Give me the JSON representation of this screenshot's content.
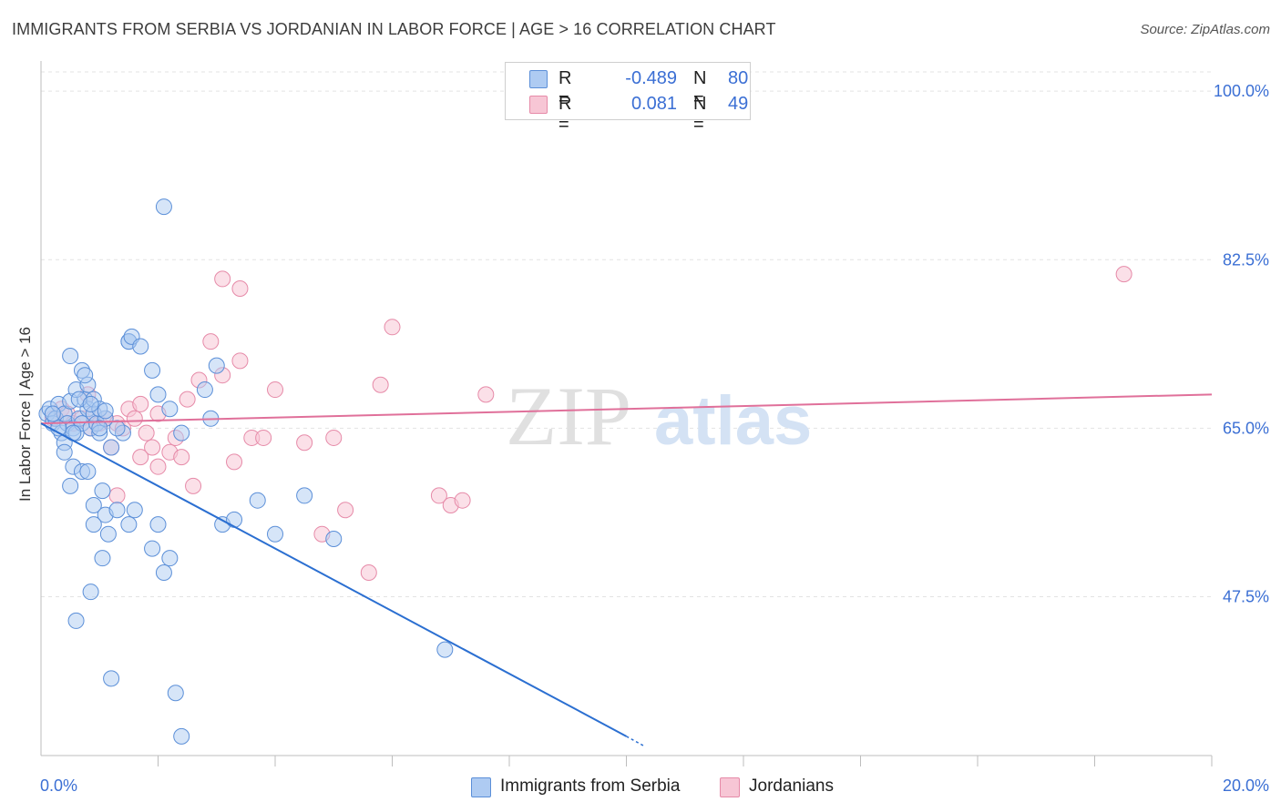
{
  "title": "IMMIGRANTS FROM SERBIA VS JORDANIAN IN LABOR FORCE | AGE > 16 CORRELATION CHART",
  "source": "Source: ZipAtlas.com",
  "watermark": {
    "zip": "ZIP",
    "atlas": "atlas"
  },
  "legend": {
    "series1": {
      "r_label": "R =",
      "r_value": "-0.489",
      "n_label": "N =",
      "n_value": "80"
    },
    "series2": {
      "r_label": "R =",
      "r_value": "0.081",
      "n_label": "N =",
      "n_value": "49"
    }
  },
  "colors": {
    "serbia_fill": "#aecbf2",
    "serbia_stroke": "#5b8fd8",
    "serbia_line": "#2b6fd1",
    "jordan_fill": "#f7c6d5",
    "jordan_stroke": "#e68aa8",
    "jordan_line": "#e0709a",
    "tick_label": "#3b6fd4",
    "grid": "#e3e3e3"
  },
  "chart_data": {
    "type": "scatter",
    "title": "IMMIGRANTS FROM SERBIA VS JORDANIAN IN LABOR FORCE | AGE > 16 CORRELATION CHART",
    "xlabel": "",
    "ylabel": "In Labor Force | Age > 16",
    "xlim": [
      0,
      20
    ],
    "ylim": [
      31,
      102
    ],
    "x_tick_labels": [
      "0.0%",
      "20.0%"
    ],
    "y_ticks": [
      47.5,
      65.0,
      82.5,
      100.0
    ],
    "y_tick_labels": [
      "47.5%",
      "65.0%",
      "82.5%",
      "100.0%"
    ],
    "grid": true,
    "legend_position": "top-center",
    "series": [
      {
        "name": "Immigrants from Serbia",
        "trend": {
          "x": [
            0.0,
            10.0
          ],
          "y": [
            65.5,
            33.0
          ]
        },
        "trend_dashed": {
          "x": [
            10.0,
            10.3
          ],
          "y": [
            33.0,
            32.0
          ]
        },
        "points": [
          [
            0.1,
            66.5
          ],
          [
            0.15,
            67.0
          ],
          [
            0.2,
            65.5
          ],
          [
            0.25,
            66.0
          ],
          [
            0.3,
            67.5
          ],
          [
            0.35,
            64.5
          ],
          [
            0.4,
            66.5
          ],
          [
            0.45,
            65.5
          ],
          [
            0.5,
            67.8
          ],
          [
            0.55,
            65.0
          ],
          [
            0.6,
            64.5
          ],
          [
            0.65,
            66.0
          ],
          [
            0.7,
            65.5
          ],
          [
            0.75,
            68.0
          ],
          [
            0.8,
            67.0
          ],
          [
            0.85,
            65.0
          ],
          [
            0.9,
            66.5
          ],
          [
            0.95,
            65.5
          ],
          [
            1.0,
            64.5
          ],
          [
            1.1,
            66.0
          ],
          [
            0.2,
            66.5
          ],
          [
            0.3,
            65.0
          ],
          [
            0.4,
            63.5
          ],
          [
            0.55,
            64.5
          ],
          [
            0.6,
            69.0
          ],
          [
            0.7,
            71.0
          ],
          [
            0.8,
            69.5
          ],
          [
            0.9,
            68.0
          ],
          [
            1.0,
            67.0
          ],
          [
            0.5,
            72.5
          ],
          [
            0.65,
            68.0
          ],
          [
            0.75,
            70.5
          ],
          [
            0.85,
            67.5
          ],
          [
            1.0,
            65.0
          ],
          [
            1.1,
            66.8
          ],
          [
            1.2,
            63.0
          ],
          [
            1.4,
            64.5
          ],
          [
            1.3,
            65.0
          ],
          [
            0.4,
            62.5
          ],
          [
            0.55,
            61.0
          ],
          [
            0.7,
            60.5
          ],
          [
            0.8,
            60.5
          ],
          [
            0.9,
            57.0
          ],
          [
            1.05,
            58.5
          ],
          [
            1.1,
            56.0
          ],
          [
            1.3,
            56.5
          ],
          [
            1.5,
            55.0
          ],
          [
            1.6,
            56.5
          ],
          [
            0.5,
            59.0
          ],
          [
            0.9,
            55.0
          ],
          [
            1.15,
            54.0
          ],
          [
            1.05,
            51.5
          ],
          [
            0.85,
            48.0
          ],
          [
            0.6,
            45.0
          ],
          [
            1.2,
            39.0
          ],
          [
            2.0,
            55.0
          ],
          [
            1.9,
            52.5
          ],
          [
            2.2,
            51.5
          ],
          [
            2.1,
            50.0
          ],
          [
            1.5,
            74.0
          ],
          [
            1.5,
            74.0
          ],
          [
            1.55,
            74.5
          ],
          [
            1.9,
            71.0
          ],
          [
            2.0,
            68.5
          ],
          [
            2.2,
            67.0
          ],
          [
            2.4,
            64.5
          ],
          [
            2.8,
            69.0
          ],
          [
            3.0,
            71.5
          ],
          [
            3.1,
            55.0
          ],
          [
            3.3,
            55.5
          ],
          [
            3.7,
            57.5
          ],
          [
            4.0,
            54.0
          ],
          [
            4.5,
            58.0
          ],
          [
            2.1,
            88.0
          ],
          [
            2.3,
            37.5
          ],
          [
            2.4,
            33.0
          ],
          [
            6.9,
            42.0
          ],
          [
            1.7,
            73.5
          ],
          [
            5.0,
            53.5
          ],
          [
            2.9,
            66.0
          ]
        ]
      },
      {
        "name": "Jordanians",
        "trend": {
          "x": [
            0.0,
            20.0
          ],
          "y": [
            65.5,
            68.5
          ]
        },
        "points": [
          [
            0.2,
            66.0
          ],
          [
            0.35,
            67.0
          ],
          [
            0.45,
            66.5
          ],
          [
            0.55,
            65.5
          ],
          [
            0.7,
            66.0
          ],
          [
            0.85,
            65.0
          ],
          [
            0.9,
            66.5
          ],
          [
            1.0,
            65.5
          ],
          [
            1.1,
            66.0
          ],
          [
            1.2,
            63.0
          ],
          [
            1.3,
            65.5
          ],
          [
            1.4,
            65.0
          ],
          [
            1.5,
            67.0
          ],
          [
            1.6,
            66.0
          ],
          [
            1.7,
            67.5
          ],
          [
            1.8,
            64.5
          ],
          [
            1.9,
            63.0
          ],
          [
            2.0,
            66.5
          ],
          [
            2.2,
            62.5
          ],
          [
            2.3,
            64.0
          ],
          [
            2.4,
            62.0
          ],
          [
            2.5,
            68.0
          ],
          [
            2.6,
            59.0
          ],
          [
            2.7,
            70.0
          ],
          [
            2.9,
            74.0
          ],
          [
            3.1,
            70.5
          ],
          [
            3.3,
            61.5
          ],
          [
            3.4,
            72.0
          ],
          [
            3.6,
            64.0
          ],
          [
            3.8,
            64.0
          ],
          [
            4.0,
            69.0
          ],
          [
            4.5,
            63.5
          ],
          [
            4.8,
            54.0
          ],
          [
            5.0,
            64.0
          ],
          [
            5.2,
            56.5
          ],
          [
            5.6,
            50.0
          ],
          [
            5.8,
            69.5
          ],
          [
            6.0,
            75.5
          ],
          [
            6.8,
            58.0
          ],
          [
            7.0,
            57.0
          ],
          [
            7.2,
            57.5
          ],
          [
            7.6,
            68.5
          ],
          [
            3.1,
            80.5
          ],
          [
            3.4,
            79.5
          ],
          [
            18.5,
            81.0
          ],
          [
            1.3,
            58.0
          ],
          [
            0.8,
            68.5
          ],
          [
            1.7,
            62.0
          ],
          [
            2.0,
            61.0
          ]
        ]
      }
    ]
  },
  "bottom_legend": {
    "serbia": "Immigrants from Serbia",
    "jordan": "Jordanians"
  }
}
